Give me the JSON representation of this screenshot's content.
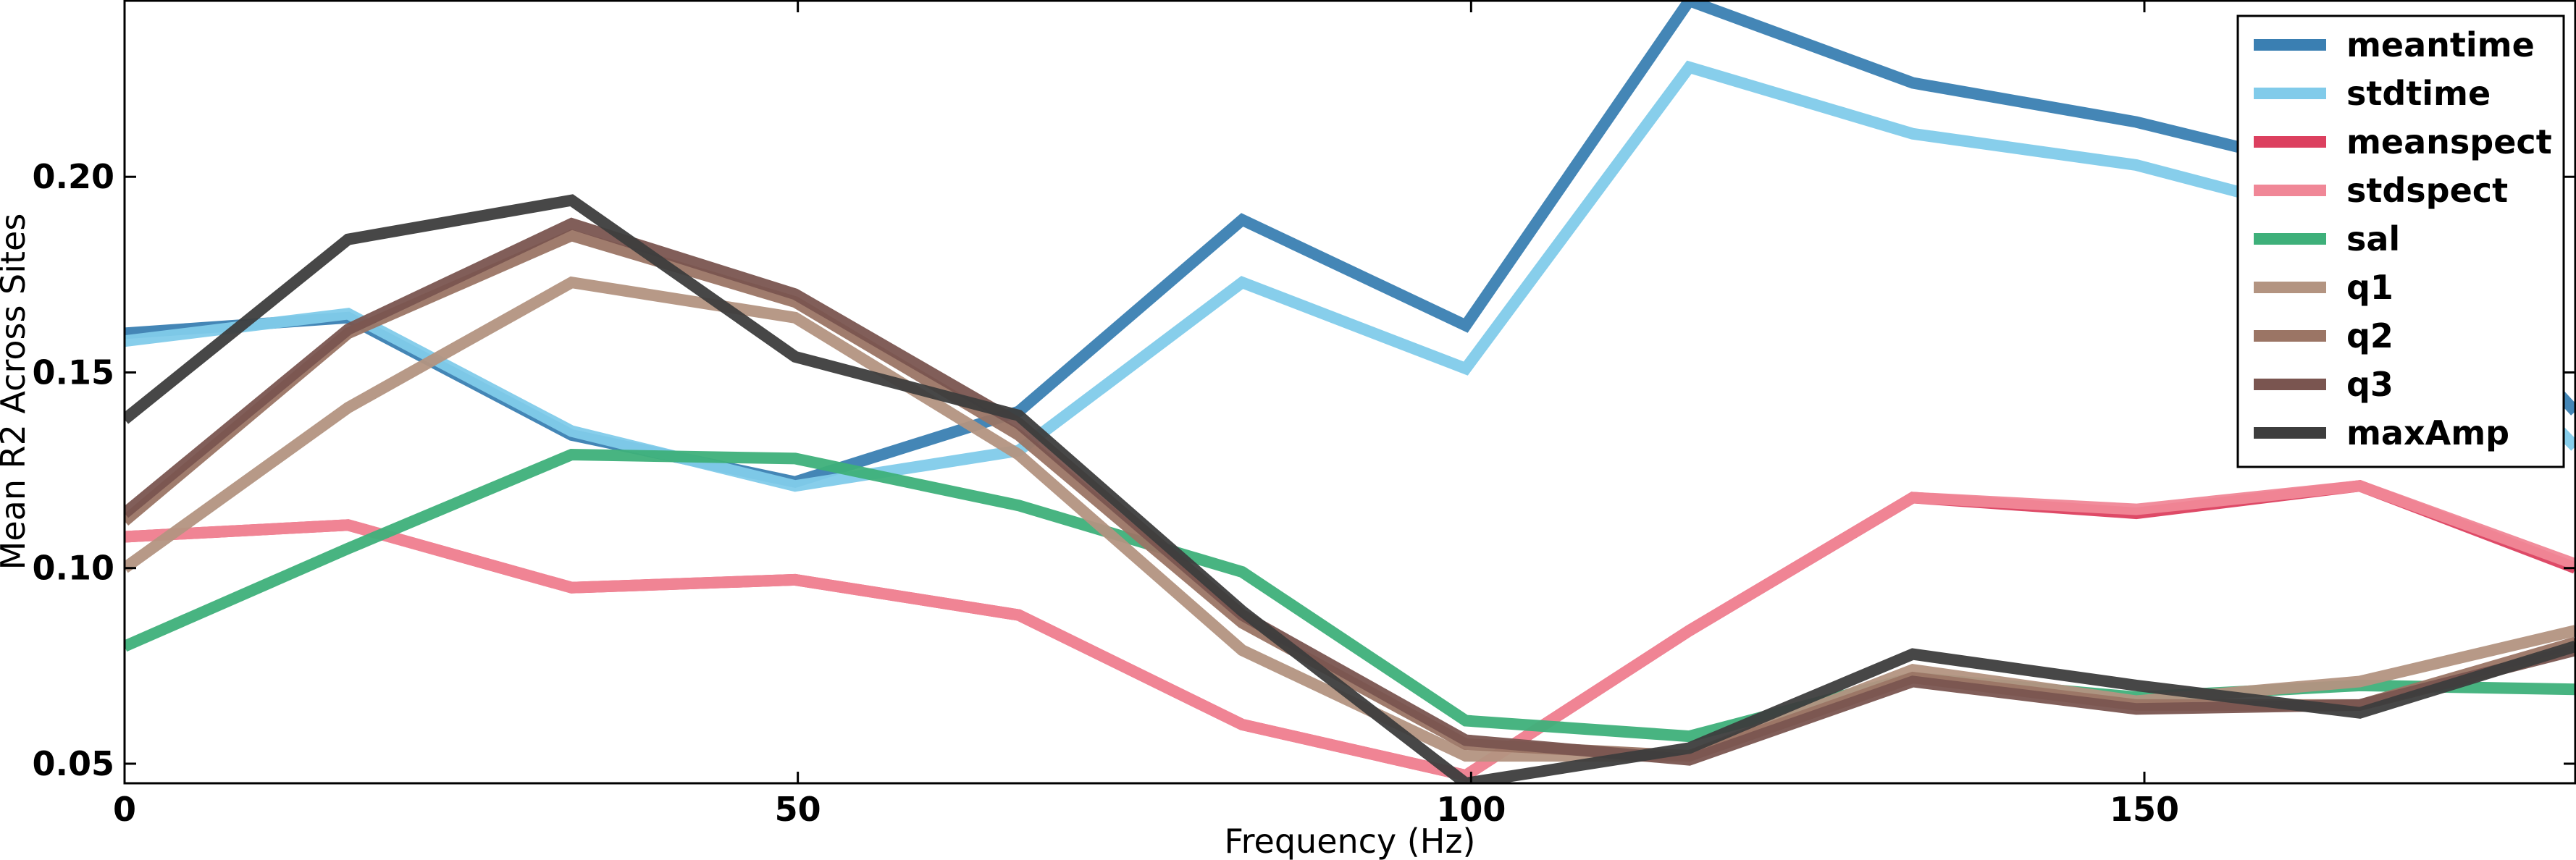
{
  "chart_data": {
    "type": "line",
    "title": "",
    "xlabel": "Frequency (Hz)",
    "ylabel": "Mean R2 Across Sites",
    "xlim": [
      0,
      182
    ],
    "ylim": [
      0.045,
      0.245
    ],
    "xticks": [
      0,
      50,
      100,
      150
    ],
    "xtick_labels": [
      "0",
      "50",
      "100",
      "150"
    ],
    "yticks": [
      0.05,
      0.1,
      0.15,
      0.2
    ],
    "ytick_labels": [
      "0.05",
      "0.10",
      "0.15",
      "0.20"
    ],
    "grid": false,
    "legend_position": "top-right",
    "x": [
      0,
      16.6,
      33.2,
      49.8,
      66.4,
      83.0,
      99.6,
      116.2,
      132.8,
      149.4,
      166.0,
      182.0
    ],
    "series": [
      {
        "name": "meantime",
        "color": "#3a7fb2",
        "values": [
          0.16,
          0.164,
          0.134,
          0.122,
          0.14,
          0.189,
          0.162,
          0.245,
          0.224,
          0.214,
          0.2,
          0.14
        ]
      },
      {
        "name": "stdtime",
        "color": "#81cbea",
        "values": [
          0.158,
          0.165,
          0.135,
          0.121,
          0.13,
          0.173,
          0.151,
          0.228,
          0.211,
          0.203,
          0.188,
          0.131
        ]
      },
      {
        "name": "meanspect",
        "color": "#dc405f",
        "values": [
          0.108,
          0.111,
          0.095,
          0.097,
          0.088,
          0.06,
          0.047,
          0.084,
          0.118,
          0.114,
          0.121,
          0.1
        ]
      },
      {
        "name": "stdspect",
        "color": "#f08797",
        "values": [
          0.108,
          0.111,
          0.095,
          0.097,
          0.088,
          0.06,
          0.047,
          0.084,
          0.118,
          0.115,
          0.121,
          0.101
        ]
      },
      {
        "name": "sal",
        "color": "#3eb07a",
        "values": [
          0.08,
          0.105,
          0.129,
          0.128,
          0.116,
          0.099,
          0.061,
          0.057,
          0.072,
          0.067,
          0.07,
          0.069
        ]
      },
      {
        "name": "q1",
        "color": "#b39481",
        "values": [
          0.1,
          0.141,
          0.173,
          0.164,
          0.129,
          0.079,
          0.052,
          0.052,
          0.074,
          0.066,
          0.071,
          0.084
        ]
      },
      {
        "name": "q2",
        "color": "#9b7565",
        "values": [
          0.112,
          0.16,
          0.185,
          0.168,
          0.134,
          0.086,
          0.055,
          0.052,
          0.072,
          0.065,
          0.065,
          0.081
        ]
      },
      {
        "name": "q3",
        "color": "#7a5550",
        "values": [
          0.114,
          0.161,
          0.188,
          0.17,
          0.137,
          0.088,
          0.056,
          0.051,
          0.071,
          0.064,
          0.065,
          0.079
        ]
      },
      {
        "name": "maxAmp",
        "color": "#3d3d3d",
        "values": [
          0.138,
          0.184,
          0.194,
          0.154,
          0.139,
          0.089,
          0.045,
          0.054,
          0.078,
          0.07,
          0.063,
          0.08
        ]
      }
    ]
  }
}
